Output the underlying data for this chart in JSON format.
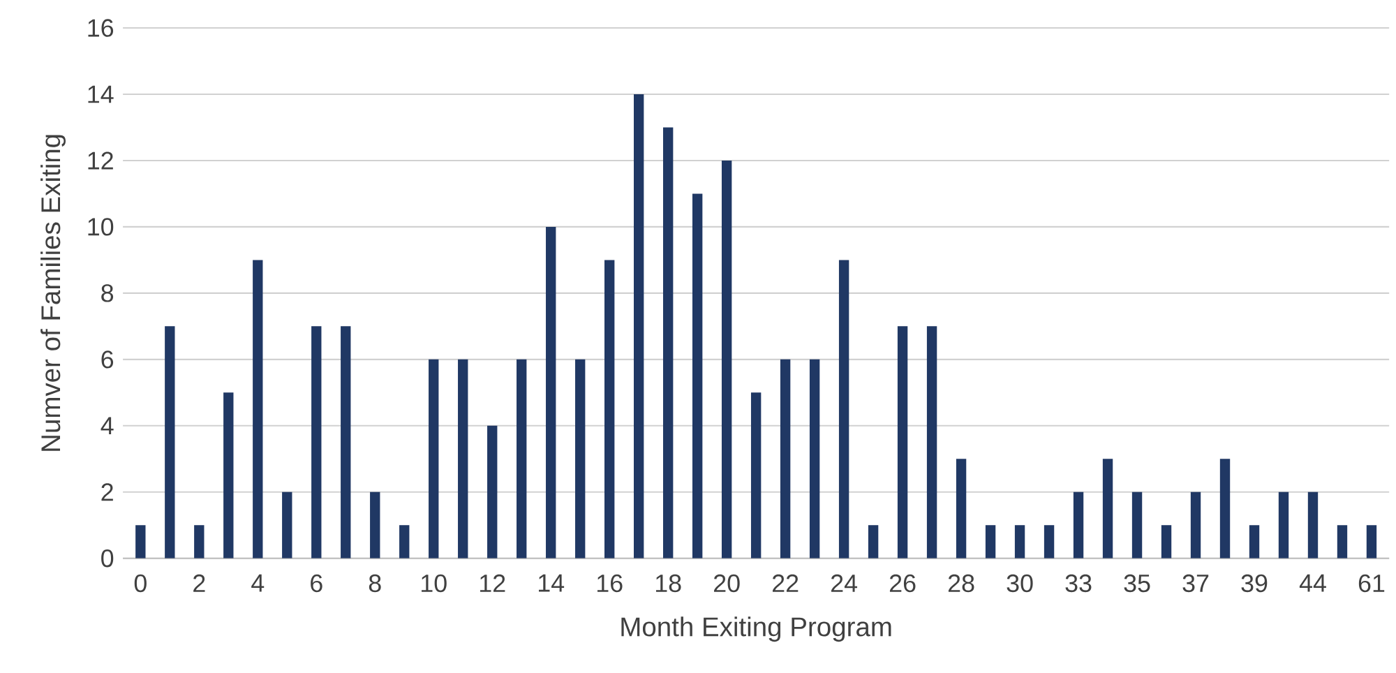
{
  "chart_data": {
    "type": "bar",
    "xlabel": "Month Exiting Program",
    "ylabel": "Numver of Families Exiting",
    "categories": [
      "0",
      null,
      "2",
      null,
      "4",
      null,
      "6",
      null,
      "8",
      null,
      "10",
      null,
      "12",
      null,
      "14",
      null,
      "16",
      null,
      "18",
      null,
      "20",
      null,
      "22",
      null,
      "24",
      null,
      "26",
      null,
      "28",
      null,
      "30",
      null,
      "33",
      null,
      "35",
      null,
      "37",
      null,
      "39",
      null,
      "44",
      null,
      "61"
    ],
    "values": [
      1,
      7,
      1,
      5,
      9,
      2,
      7,
      7,
      2,
      1,
      6,
      6,
      4,
      6,
      10,
      6,
      9,
      14,
      13,
      11,
      12,
      5,
      6,
      6,
      9,
      1,
      7,
      7,
      3,
      1,
      1,
      1,
      2,
      3,
      2,
      1,
      2,
      3,
      1,
      2,
      2,
      1,
      1
    ],
    "color": "#203864",
    "ylim": [
      0,
      16
    ],
    "yticks": [
      0,
      2,
      4,
      6,
      8,
      10,
      12,
      14,
      16
    ],
    "grid": "y"
  }
}
